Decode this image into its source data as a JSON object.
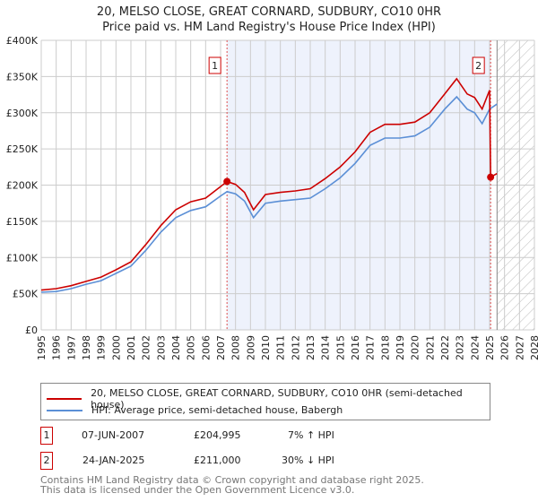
{
  "title_line1": "20, MELSO CLOSE, GREAT CORNARD, SUDBURY, CO10 0HR",
  "title_line2": "Price paid vs. HM Land Registry's House Price Index (HPI)",
  "legend": {
    "red_label": "20, MELSO CLOSE, GREAT CORNARD, SUDBURY, CO10 0HR (semi-detached house)",
    "blue_label": "HPI: Average price, semi-detached house, Babergh"
  },
  "sales": [
    {
      "num": "1",
      "date": "07-JUN-2007",
      "price": "£204,995",
      "delta": "7% ↑ HPI"
    },
    {
      "num": "2",
      "date": "24-JAN-2025",
      "price": "£211,000",
      "delta": "30% ↓ HPI"
    }
  ],
  "footer1": "Contains HM Land Registry data © Crown copyright and database right 2025.",
  "footer2": "This data is licensed under the Open Government Licence v3.0.",
  "colors": {
    "red": "#cc0000",
    "blue": "#5b8fd6",
    "shade": "#eef2fc"
  },
  "chart_data": {
    "type": "line",
    "xlim": [
      1995,
      2028
    ],
    "ylim": [
      0,
      400000
    ],
    "y_ticks": [
      0,
      50000,
      100000,
      150000,
      200000,
      250000,
      300000,
      350000,
      400000
    ],
    "y_tick_labels": [
      "£0",
      "£50K",
      "£100K",
      "£150K",
      "£200K",
      "£250K",
      "£300K",
      "£350K",
      "£400K"
    ],
    "x_ticks": [
      "1995",
      "1996",
      "1997",
      "1998",
      "1999",
      "2000",
      "2001",
      "2002",
      "2003",
      "2004",
      "2005",
      "2006",
      "2007",
      "2008",
      "2009",
      "2010",
      "2011",
      "2012",
      "2013",
      "2014",
      "2015",
      "2016",
      "2017",
      "2018",
      "2019",
      "2020",
      "2021",
      "2022",
      "2023",
      "2024",
      "2025",
      "2026",
      "2027",
      "2028"
    ],
    "markers": [
      {
        "label": "1",
        "x": 2007.43,
        "y": 204995
      },
      {
        "label": "2",
        "x": 2025.07,
        "y": 211000
      }
    ],
    "forecast_start": 2025.5,
    "series": [
      {
        "name": "20, MELSO CLOSE, GREAT CORNARD, SUDBURY, CO10 0HR (semi-detached house)",
        "color": "#cc0000",
        "x": [
          1995,
          1996,
          1997,
          1998,
          1999,
          2000,
          2001,
          2002,
          2003,
          2004,
          2005,
          2006,
          2007,
          2007.43,
          2008,
          2008.6,
          2009.2,
          2010,
          2011,
          2012,
          2013,
          2014,
          2015,
          2016,
          2017,
          2018,
          2019,
          2020,
          2021,
          2022,
          2022.8,
          2023.5,
          2024,
          2024.5,
          2025.0,
          2025.07,
          2025.5
        ],
        "y": [
          55000,
          57000,
          61000,
          67000,
          73000,
          83000,
          94000,
          118000,
          144000,
          166000,
          177000,
          182000,
          198000,
          204995,
          201000,
          190000,
          166000,
          187000,
          190000,
          192000,
          195000,
          209000,
          225000,
          246000,
          273000,
          284000,
          284000,
          287000,
          300000,
          326000,
          347000,
          326000,
          321000,
          305000,
          331000,
          211000,
          216000
        ]
      },
      {
        "name": "HPI: Average price, semi-detached house, Babergh",
        "color": "#5b8fd6",
        "x": [
          1995,
          1996,
          1997,
          1998,
          1999,
          2000,
          2001,
          2002,
          2003,
          2004,
          2005,
          2006,
          2007,
          2007.43,
          2008,
          2008.6,
          2009.2,
          2010,
          2011,
          2012,
          2013,
          2014,
          2015,
          2016,
          2017,
          2018,
          2019,
          2020,
          2021,
          2022,
          2022.8,
          2023.5,
          2024,
          2024.5,
          2025.0,
          2025.5
        ],
        "y": [
          52000,
          53000,
          57000,
          63000,
          68000,
          78000,
          88000,
          110000,
          135000,
          155000,
          165000,
          170000,
          185000,
          191000,
          188000,
          178000,
          155000,
          175000,
          178000,
          180000,
          182000,
          195000,
          210000,
          230000,
          255000,
          265000,
          265000,
          268000,
          280000,
          305000,
          322000,
          305000,
          300000,
          285000,
          305000,
          312000
        ]
      }
    ]
  }
}
